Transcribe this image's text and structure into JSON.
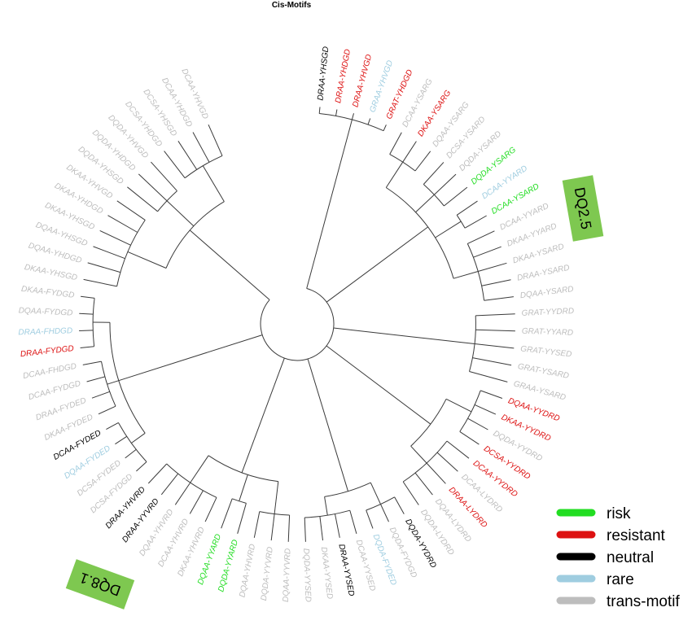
{
  "title": "Cis-Motifs",
  "colors": {
    "risk": "#22dd22",
    "resistant": "#dd1111",
    "neutral": "#000000",
    "rare": "#9fcde0",
    "trans": "#bdbdbd",
    "callout": "#7ec850",
    "branch": "#3a3a3a"
  },
  "legend": [
    {
      "key": "risk",
      "label": "risk"
    },
    {
      "key": "resistant",
      "label": "resistant"
    },
    {
      "key": "neutral",
      "label": "neutral"
    },
    {
      "key": "rare",
      "label": "rare"
    },
    {
      "key": "trans",
      "label": "trans-motif"
    }
  ],
  "callouts": [
    {
      "label": "DQ2.5"
    },
    {
      "label": "DQ8.1"
    }
  ],
  "leaves": [
    {
      "label": "DRAA-YHSGD",
      "cat": "neutral"
    },
    {
      "label": "DRAA-YHDGD",
      "cat": "resistant"
    },
    {
      "label": "DRAA-YHVGD",
      "cat": "resistant"
    },
    {
      "label": "GRAA-YHVGD",
      "cat": "rare"
    },
    {
      "label": "GRAT-YHDGD",
      "cat": "resistant"
    },
    {
      "label": "DCAA-YSARG",
      "cat": "trans"
    },
    {
      "label": "DKAA-YSARG",
      "cat": "resistant"
    },
    {
      "label": "DQAA-YSARG",
      "cat": "trans"
    },
    {
      "label": "DCSA-YSARD",
      "cat": "trans"
    },
    {
      "label": "DQDA-YSARD",
      "cat": "trans"
    },
    {
      "label": "DQDA-YSARG",
      "cat": "risk"
    },
    {
      "label": "DCAA-YYARD",
      "cat": "rare"
    },
    {
      "label": "DCAA-YSARD",
      "cat": "risk"
    },
    {
      "label": "DCAA-YYARD",
      "cat": "trans"
    },
    {
      "label": "DKAA-YYARD",
      "cat": "trans"
    },
    {
      "label": "DKAA-YSARD",
      "cat": "trans"
    },
    {
      "label": "DRAA-YSARD",
      "cat": "trans"
    },
    {
      "label": "DQAA-YSARD",
      "cat": "trans"
    },
    {
      "label": "GRAT-YYDRD",
      "cat": "trans"
    },
    {
      "label": "GRAT-YYARD",
      "cat": "trans"
    },
    {
      "label": "GRAT-YYSED",
      "cat": "trans"
    },
    {
      "label": "GRAT-YSARD",
      "cat": "trans"
    },
    {
      "label": "GRAA-YSARD",
      "cat": "trans"
    },
    {
      "label": "DQAA-YYDRD",
      "cat": "resistant"
    },
    {
      "label": "DKAA-YYDRD",
      "cat": "resistant"
    },
    {
      "label": "DQDA-YYDRD",
      "cat": "trans"
    },
    {
      "label": "DCSA-YYDRD",
      "cat": "resistant"
    },
    {
      "label": "DCAA-YYDRD",
      "cat": "resistant"
    },
    {
      "label": "DCAA-LYDRD",
      "cat": "trans"
    },
    {
      "label": "DRAA-LYDRD",
      "cat": "resistant"
    },
    {
      "label": "DQAA-LYDRD",
      "cat": "trans"
    },
    {
      "label": "DQDA-LYDRD",
      "cat": "trans"
    },
    {
      "label": "DQDA-YYDRD",
      "cat": "neutral"
    },
    {
      "label": "DQDA-FYDGD",
      "cat": "trans"
    },
    {
      "label": "DQDA-FYDED",
      "cat": "rare"
    },
    {
      "label": "DCAA-YYSED",
      "cat": "trans"
    },
    {
      "label": "DRAA-YYSED",
      "cat": "neutral"
    },
    {
      "label": "DKAA-YYSED",
      "cat": "trans"
    },
    {
      "label": "DQDA-YYSED",
      "cat": "trans"
    },
    {
      "label": "DQAA-YYVRD",
      "cat": "trans"
    },
    {
      "label": "DQDA-YYVRD",
      "cat": "trans"
    },
    {
      "label": "DQAA-YHVRD",
      "cat": "trans"
    },
    {
      "label": "DQDA-YYARD",
      "cat": "risk"
    },
    {
      "label": "DQAA-YYARD",
      "cat": "risk"
    },
    {
      "label": "DKAA-YHVRD",
      "cat": "trans"
    },
    {
      "label": "DCAA-YHVRD",
      "cat": "trans"
    },
    {
      "label": "DQAA-YHVRD",
      "cat": "trans"
    },
    {
      "label": "DRAA-YYVRD",
      "cat": "neutral"
    },
    {
      "label": "DRAA-YHVRD",
      "cat": "neutral"
    },
    {
      "label": "DCSA-FYDGD",
      "cat": "trans"
    },
    {
      "label": "DCSA-FYDED",
      "cat": "trans"
    },
    {
      "label": "DQAA-FYDED",
      "cat": "rare"
    },
    {
      "label": "DCAA-FYDED",
      "cat": "neutral"
    },
    {
      "label": "DKAA-FYDED",
      "cat": "trans"
    },
    {
      "label": "DRAA-FYDED",
      "cat": "trans"
    },
    {
      "label": "DCAA-FYDGD",
      "cat": "trans"
    },
    {
      "label": "DCAA-FHDGD",
      "cat": "trans"
    },
    {
      "label": "DRAA-FYDGD",
      "cat": "resistant"
    },
    {
      "label": "DRAA-FHDGD",
      "cat": "rare"
    },
    {
      "label": "DQAA-FYDGD",
      "cat": "trans"
    },
    {
      "label": "DKAA-FYDGD",
      "cat": "trans"
    },
    {
      "label": "DKAA-YHSGD",
      "cat": "trans"
    },
    {
      "label": "DQAA-YHDGD",
      "cat": "trans"
    },
    {
      "label": "DQAA-YHSGD",
      "cat": "trans"
    },
    {
      "label": "DKAA-YHSGD",
      "cat": "trans"
    },
    {
      "label": "DKAA-YHDGD",
      "cat": "trans"
    },
    {
      "label": "DKAA-YHVGD",
      "cat": "trans"
    },
    {
      "label": "DQDA-YHSGD",
      "cat": "trans"
    },
    {
      "label": "DQDA-YHDGD",
      "cat": "trans"
    },
    {
      "label": "DQDA-YHVGD",
      "cat": "trans"
    },
    {
      "label": "DCSA-YHDGD",
      "cat": "trans"
    },
    {
      "label": "DCSA-YHSGD",
      "cat": "trans"
    },
    {
      "label": "DCAA-YHDGD",
      "cat": "trans"
    },
    {
      "label": "DCAA-YHVGD",
      "cat": "trans"
    }
  ]
}
